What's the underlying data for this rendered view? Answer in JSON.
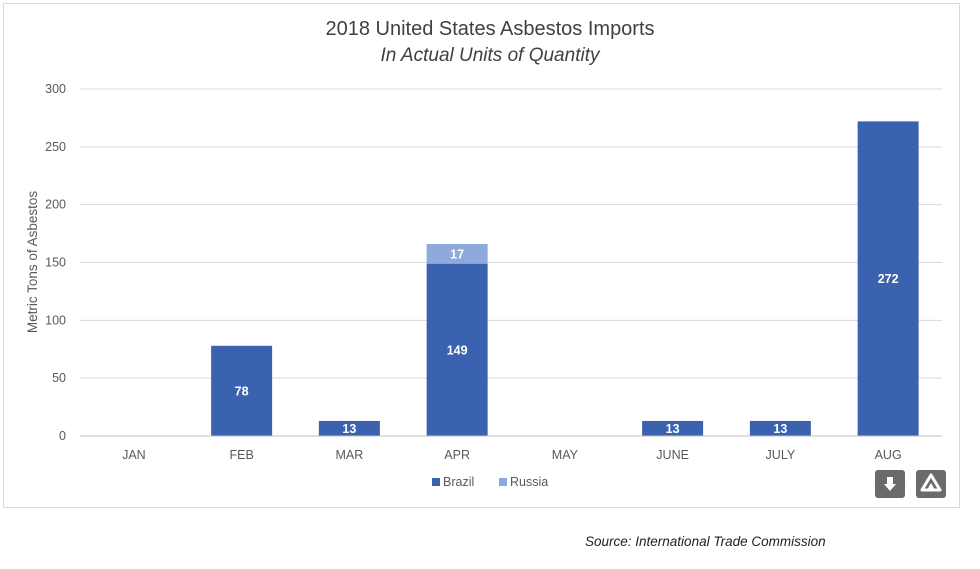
{
  "chart_data": {
    "type": "bar",
    "stacked": true,
    "title": "2018 United States Asbestos Imports",
    "subtitle": "In Actual Units of Quantity",
    "ylabel": "Metric Tons of Asbestos",
    "xlabel": "",
    "categories": [
      "JAN",
      "FEB",
      "MAR",
      "APR",
      "MAY",
      "JUNE",
      "JULY",
      "AUG"
    ],
    "series": [
      {
        "name": "Brazil",
        "color": "#3a62ae",
        "values": [
          0,
          78,
          13,
          149,
          0,
          13,
          13,
          272
        ]
      },
      {
        "name": "Russia",
        "color": "#8ea9db",
        "values": [
          0,
          0,
          0,
          17,
          0,
          0,
          0,
          0
        ]
      }
    ],
    "ylim": [
      0,
      300
    ],
    "yticks": [
      0,
      50,
      100,
      150,
      200,
      250,
      300
    ],
    "grid": true,
    "legend": "bottom"
  },
  "source": "Source: International Trade Commission",
  "icons": {
    "download": "download-icon",
    "drive": "drive-icon"
  }
}
